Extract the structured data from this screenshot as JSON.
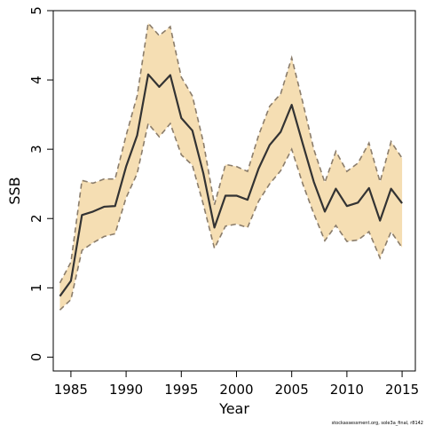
{
  "chart_data": {
    "type": "line",
    "xlabel": "Year",
    "ylabel": "SSB",
    "xlim": [
      1983.4,
      2016.2
    ],
    "ylim": [
      -0.2,
      5.0
    ],
    "x_ticks": [
      1985,
      1990,
      1995,
      2000,
      2005,
      2010,
      2015
    ],
    "y_ticks": [
      0,
      1,
      2,
      3,
      4,
      5
    ],
    "grid": false,
    "legend": "none",
    "x": [
      1984,
      1985,
      1986,
      1987,
      1988,
      1989,
      1990,
      1991,
      1992,
      1993,
      1994,
      1995,
      1996,
      1997,
      1998,
      1999,
      2000,
      2001,
      2002,
      2003,
      2004,
      2005,
      2006,
      2007,
      2008,
      2009,
      2010,
      2011,
      2012,
      2013,
      2014,
      2015
    ],
    "series": [
      {
        "role": "estimate",
        "values": [
          0.88,
          1.1,
          2.05,
          2.1,
          2.17,
          2.18,
          2.75,
          3.2,
          4.08,
          3.9,
          4.07,
          3.45,
          3.27,
          2.65,
          1.87,
          2.33,
          2.33,
          2.27,
          2.72,
          3.06,
          3.25,
          3.64,
          3.08,
          2.53,
          2.1,
          2.43,
          2.18,
          2.23,
          2.44,
          1.97,
          2.43,
          2.22
        ]
      },
      {
        "role": "upper",
        "values": [
          1.07,
          1.37,
          2.55,
          2.51,
          2.57,
          2.57,
          3.2,
          3.77,
          4.82,
          4.64,
          4.77,
          4.04,
          3.77,
          3.1,
          2.2,
          2.78,
          2.75,
          2.68,
          3.2,
          3.62,
          3.8,
          4.32,
          3.68,
          3.0,
          2.52,
          2.97,
          2.68,
          2.8,
          3.09,
          2.53,
          3.11,
          2.87
        ]
      },
      {
        "role": "lower",
        "values": [
          0.68,
          0.83,
          1.54,
          1.65,
          1.74,
          1.78,
          2.3,
          2.65,
          3.37,
          3.18,
          3.37,
          2.92,
          2.77,
          2.2,
          1.57,
          1.89,
          1.92,
          1.87,
          2.25,
          2.5,
          2.69,
          3.0,
          2.5,
          2.07,
          1.68,
          1.9,
          1.67,
          1.69,
          1.81,
          1.43,
          1.81,
          1.58
        ]
      }
    ],
    "colors": {
      "band_fill": "#f5deb3",
      "band_edge": "#8b7d6b",
      "estimate_line": "#333333",
      "axis": "#000000"
    }
  },
  "footer": {
    "note": "stockassessment.org, sole3a_final, r8142"
  }
}
